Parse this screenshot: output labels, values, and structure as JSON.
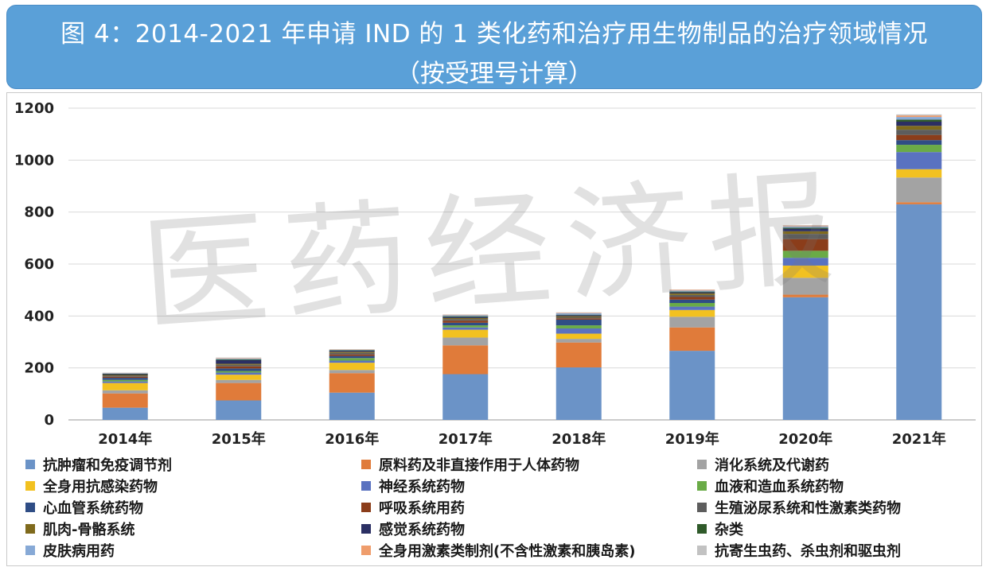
{
  "title": {
    "line1": "图 4：2014-2021 年申请 IND 的 1 类化药和治疗用生物制品的治疗领域情况",
    "line2": "（按受理号计算）"
  },
  "watermark": "医药经济报",
  "chart_data": {
    "type": "bar",
    "stacked": true,
    "categories": [
      "2014年",
      "2015年",
      "2016年",
      "2017年",
      "2018年",
      "2019年",
      "2020年",
      "2021年"
    ],
    "ylim": [
      0,
      1200
    ],
    "yticks": [
      0,
      200,
      400,
      600,
      800,
      1000,
      1200
    ],
    "grid": true,
    "legend_position": "bottom",
    "series": [
      {
        "name": "抗肿瘤和免疫调节剂",
        "color": "#6b93c7",
        "values": [
          47,
          75,
          105,
          176,
          202,
          266,
          472,
          830
        ]
      },
      {
        "name": "原料药及非直接作用于人体药物",
        "color": "#e07b3a",
        "values": [
          55,
          67,
          75,
          111,
          96,
          90,
          10,
          8
        ]
      },
      {
        "name": "消化系统及代谢药",
        "color": "#a3a3a3",
        "values": [
          12,
          12,
          12,
          30,
          14,
          41,
          65,
          95
        ]
      },
      {
        "name": "全身用抗感染药物",
        "color": "#f2c120",
        "values": [
          28,
          20,
          28,
          30,
          20,
          26,
          47,
          32
        ]
      },
      {
        "name": "神经系统药物",
        "color": "#5a72c0",
        "values": [
          6,
          8,
          8,
          9,
          20,
          13,
          30,
          66
        ]
      },
      {
        "name": "血液和造血系统药物",
        "color": "#6aab47",
        "values": [
          6,
          6,
          10,
          8,
          12,
          14,
          27,
          28
        ]
      },
      {
        "name": "心血管系统药物",
        "color": "#2f4d85",
        "values": [
          8,
          10,
          8,
          10,
          22,
          13,
          0,
          18
        ]
      },
      {
        "name": "呼吸系统用药",
        "color": "#8b3d1a",
        "values": [
          4,
          8,
          6,
          8,
          5,
          10,
          45,
          20
        ]
      },
      {
        "name": "生殖泌尿系统和性激素类药物",
        "color": "#5d5d5d",
        "values": [
          4,
          6,
          6,
          6,
          4,
          8,
          20,
          20
        ]
      },
      {
        "name": "肌肉-骨骼系统",
        "color": "#7f6a1c",
        "values": [
          3,
          4,
          4,
          4,
          4,
          6,
          10,
          15
        ]
      },
      {
        "name": "感觉系统药物",
        "color": "#2b2f63",
        "values": [
          3,
          14,
          4,
          4,
          4,
          4,
          10,
          16
        ]
      },
      {
        "name": "杂类",
        "color": "#2f5a2a",
        "values": [
          2,
          3,
          2,
          3,
          2,
          3,
          4,
          8
        ]
      },
      {
        "name": "皮肤病用药",
        "color": "#87a9d6",
        "values": [
          2,
          3,
          2,
          4,
          6,
          4,
          5,
          10
        ]
      },
      {
        "name": "全身用激素类制剂(不含性激素和胰岛素)",
        "color": "#ef9d6c",
        "values": [
          1,
          2,
          1,
          2,
          2,
          3,
          3,
          6
        ]
      },
      {
        "name": "抗寄生虫药、杀虫剂和驱虫剂",
        "color": "#c2c2c2",
        "values": [
          1,
          2,
          1,
          1,
          1,
          1,
          2,
          4
        ]
      }
    ]
  }
}
